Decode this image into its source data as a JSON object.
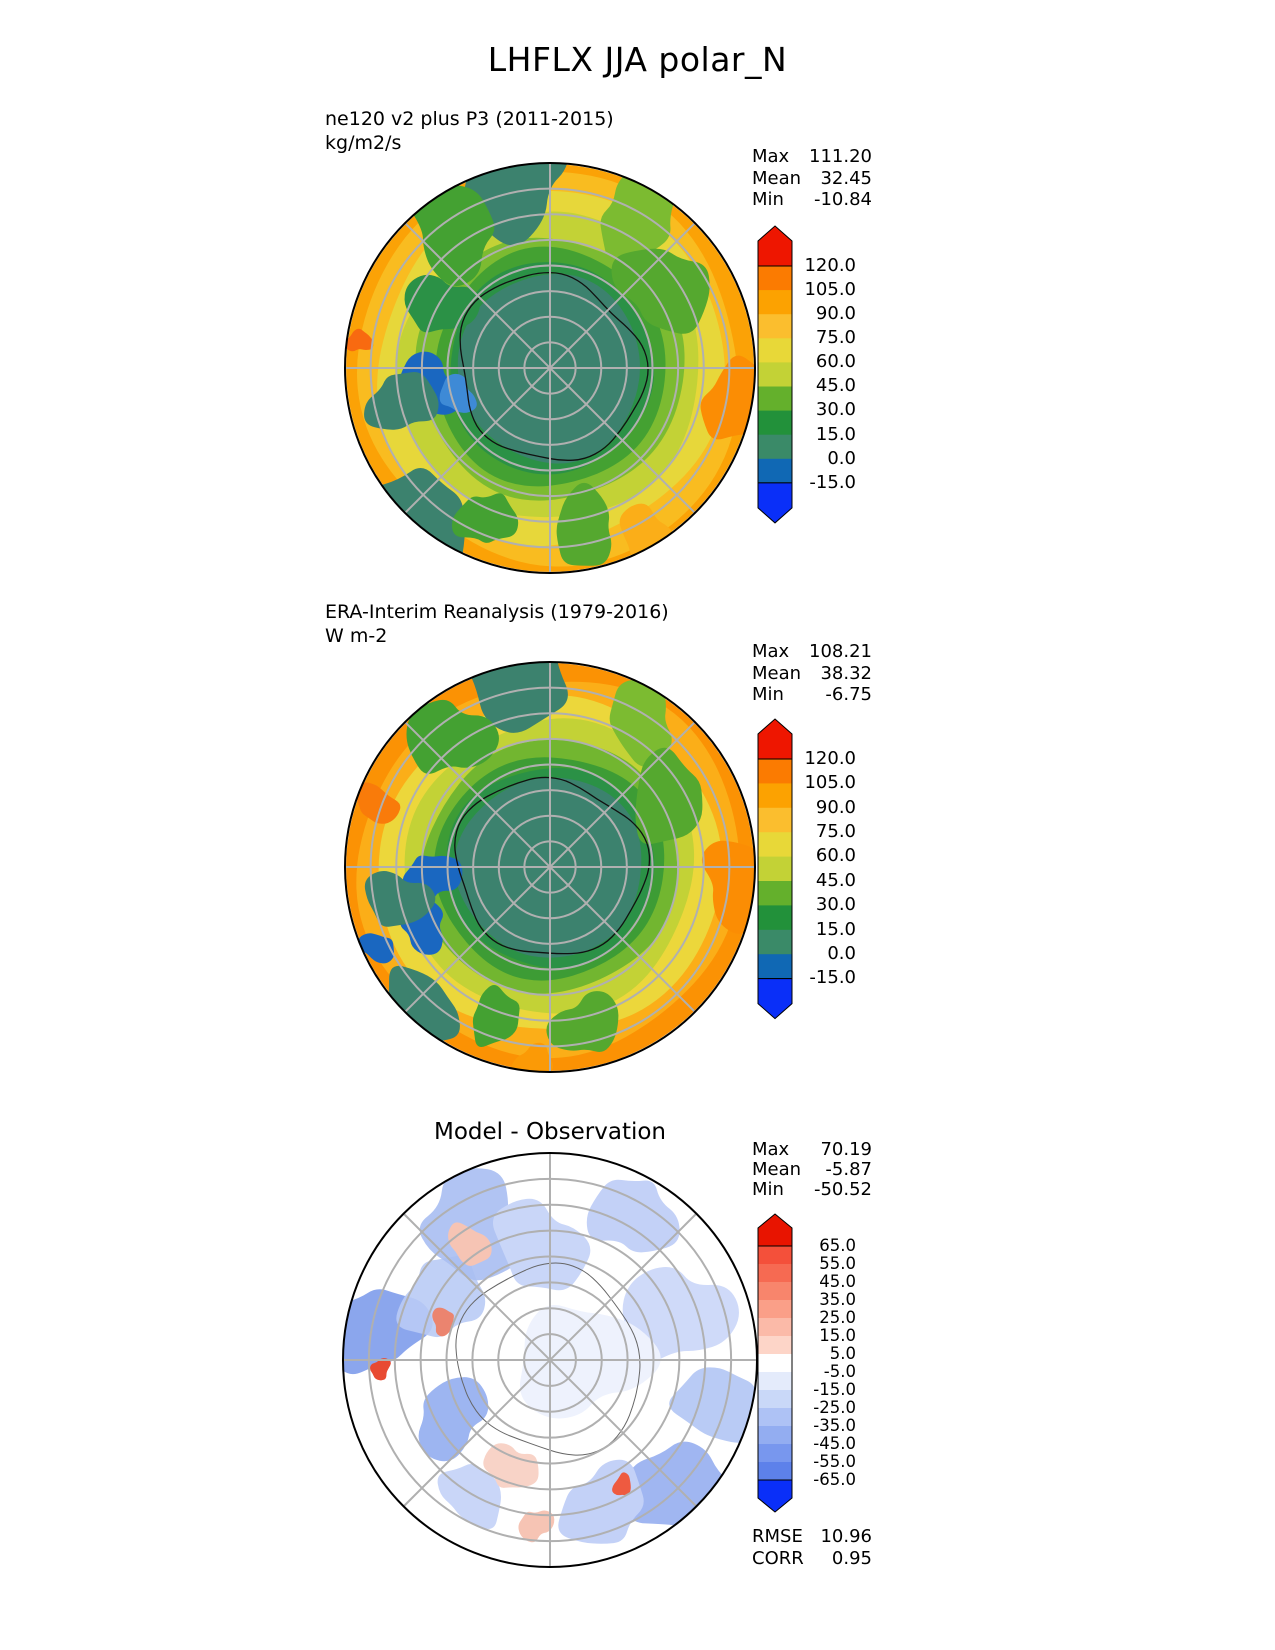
{
  "title": "LHFLX JJA polar_N",
  "background": "#ffffff",
  "panels": [
    {
      "id": "model",
      "label_line1": "ne120 v2 plus P3 (2011-2015)",
      "label_line2": "kg/m2/s",
      "stats": [
        {
          "label": "Max",
          "value": "111.20"
        },
        {
          "label": "Mean",
          "value": "32.45"
        },
        {
          "label": "Min",
          "value": "-10.84"
        }
      ],
      "colorbar": {
        "labels": [
          "120.0",
          "105.0",
          "90.0",
          "75.0",
          "60.0",
          "45.0",
          "30.0",
          "15.0",
          "0.0",
          "-15.0"
        ],
        "bin_colors": [
          "#fb7b01",
          "#fca201",
          "#fbbe2e",
          "#e8d838",
          "#c3d236",
          "#64b02c",
          "#22913a",
          "#3a8a68",
          "#1068b4"
        ],
        "over": "#ee1600",
        "under": "#0a2ff8"
      },
      "map_visual": {
        "seed": 11,
        "bands": [
          {
            "f": 1.0,
            "c": "#fba206"
          },
          {
            "f": 0.95,
            "c": "#f9bc20"
          },
          {
            "f": 0.86,
            "c": "#e7d73a"
          },
          {
            "f": 0.745,
            "c": "#c3d236"
          },
          {
            "f": 0.65,
            "c": "#7cbb31"
          },
          {
            "f": 0.575,
            "c": "#44a132"
          },
          {
            "f": 0.51,
            "c": "#2b9146"
          },
          {
            "f": 0.455,
            "c": "#3c826e"
          }
        ],
        "patches": [
          {
            "a": 100,
            "rf": 0.99,
            "sf": 0.3,
            "c": "#3c826e"
          },
          {
            "a": 125,
            "rf": 0.82,
            "sf": 0.22,
            "c": "#44a132"
          },
          {
            "a": 60,
            "rf": 0.85,
            "sf": 0.2,
            "c": "#7cbb31"
          },
          {
            "a": 35,
            "rf": 0.68,
            "sf": 0.22,
            "c": "#55a82f"
          },
          {
            "a": 150,
            "rf": 0.62,
            "sf": 0.16,
            "c": "#2b9146"
          },
          {
            "a": 188,
            "rf": 0.6,
            "sf": 0.15,
            "c": "#1a67c0"
          },
          {
            "a": 196,
            "rf": 0.47,
            "sf": 0.09,
            "c": "#3e8ad6"
          },
          {
            "a": 193,
            "rf": 0.74,
            "sf": 0.16,
            "c": "#3c826e"
          },
          {
            "a": 230,
            "rf": 0.97,
            "sf": 0.24,
            "c": "#3c826e"
          },
          {
            "a": 247,
            "rf": 0.8,
            "sf": 0.14,
            "c": "#44a132"
          },
          {
            "a": 282,
            "rf": 0.8,
            "sf": 0.17,
            "c": "#55a82f"
          },
          {
            "a": 172,
            "rf": 0.94,
            "sf": 0.06,
            "c": "#f86a10"
          },
          {
            "a": 350,
            "rf": 0.92,
            "sf": 0.18,
            "c": "#fb8d04"
          },
          {
            "a": 300,
            "rf": 0.95,
            "sf": 0.14,
            "c": "#fbae18"
          }
        ],
        "coast": {
          "rf": 0.455,
          "amp": 0.13,
          "color": "#111111",
          "width": 1.3
        },
        "graticule": {
          "circles": 7,
          "color": "#b0b0b0",
          "width": 2
        },
        "outline": "#000000"
      }
    },
    {
      "id": "observation",
      "label_line1": "ERA-Interim Reanalysis (1979-2016)",
      "label_line2": "W m-2",
      "stats": [
        {
          "label": "Max",
          "value": "108.21"
        },
        {
          "label": "Mean",
          "value": "38.32"
        },
        {
          "label": "Min",
          "value": "-6.75"
        }
      ],
      "colorbar": {
        "labels": [
          "120.0",
          "105.0",
          "90.0",
          "75.0",
          "60.0",
          "45.0",
          "30.0",
          "15.0",
          "0.0",
          "-15.0"
        ],
        "bin_colors": [
          "#fb7b01",
          "#fca201",
          "#fbbe2e",
          "#e8d838",
          "#c3d236",
          "#64b02c",
          "#22913a",
          "#3a8a68",
          "#1068b4"
        ],
        "over": "#ee1600",
        "under": "#0a2ff8"
      },
      "map_visual": {
        "seed": 29,
        "bands": [
          {
            "f": 1.0,
            "c": "#fb9204"
          },
          {
            "f": 0.93,
            "c": "#fbae18"
          },
          {
            "f": 0.83,
            "c": "#ecd73b"
          },
          {
            "f": 0.715,
            "c": "#c3d236"
          },
          {
            "f": 0.625,
            "c": "#72b630"
          },
          {
            "f": 0.555,
            "c": "#3d9c35"
          },
          {
            "f": 0.5,
            "c": "#2b9146"
          },
          {
            "f": 0.45,
            "c": "#3c826e"
          }
        ],
        "patches": [
          {
            "a": 100,
            "rf": 0.99,
            "sf": 0.28,
            "c": "#3c826e"
          },
          {
            "a": 128,
            "rf": 0.8,
            "sf": 0.2,
            "c": "#44a132"
          },
          {
            "a": 58,
            "rf": 0.84,
            "sf": 0.18,
            "c": "#7cbb31"
          },
          {
            "a": 30,
            "rf": 0.66,
            "sf": 0.2,
            "c": "#55a82f"
          },
          {
            "a": 185,
            "rf": 0.58,
            "sf": 0.13,
            "c": "#1a67c0"
          },
          {
            "a": 205,
            "rf": 0.68,
            "sf": 0.12,
            "c": "#1a67c0"
          },
          {
            "a": 192,
            "rf": 0.76,
            "sf": 0.15,
            "c": "#3c826e"
          },
          {
            "a": 228,
            "rf": 0.96,
            "sf": 0.2,
            "c": "#3c826e"
          },
          {
            "a": 250,
            "rf": 0.78,
            "sf": 0.13,
            "c": "#44a132"
          },
          {
            "a": 283,
            "rf": 0.79,
            "sf": 0.16,
            "c": "#55a82f"
          },
          {
            "a": 160,
            "rf": 0.9,
            "sf": 0.1,
            "c": "#f97b0a"
          },
          {
            "a": 355,
            "rf": 0.93,
            "sf": 0.2,
            "c": "#fb8d04"
          },
          {
            "a": 265,
            "rf": 0.97,
            "sf": 0.1,
            "c": "#fb9a06"
          },
          {
            "a": 205,
            "rf": 0.93,
            "sf": 0.08,
            "c": "#1a67c0"
          }
        ],
        "coast": {
          "rf": 0.45,
          "amp": 0.13,
          "color": "#111111",
          "width": 1.3
        },
        "graticule": {
          "circles": 7,
          "color": "#b0b0b0",
          "width": 2
        },
        "outline": "#000000"
      }
    },
    {
      "id": "difference",
      "title": "Model - Observation",
      "stats": [
        {
          "label": "Max",
          "value": "70.19"
        },
        {
          "label": "Mean",
          "value": "-5.87"
        },
        {
          "label": "Min",
          "value": "-50.52"
        }
      ],
      "colorbar": {
        "labels": [
          "65.0",
          "55.0",
          "45.0",
          "35.0",
          "25.0",
          "15.0",
          "5.0",
          "-5.0",
          "-15.0",
          "-25.0",
          "-35.0",
          "-45.0",
          "-55.0",
          "-65.0"
        ],
        "bin_colors": [
          "#f4503a",
          "#f66a52",
          "#f8856c",
          "#fa9f88",
          "#fbbaa8",
          "#fdd5c8",
          "#ffffff",
          "#e4ebfb",
          "#c9d8f8",
          "#aec2f5",
          "#93adf1",
          "#7897ee",
          "#5d81ea"
        ],
        "over": "#e81400",
        "under": "#0a2ff8"
      },
      "map_visual": {
        "seed": 53,
        "bands": [
          {
            "f": 1.0,
            "c": "#ffffff"
          }
        ],
        "patches": [
          {
            "a": 170,
            "rf": 0.85,
            "sf": 0.22,
            "c": "#6e90e8",
            "o": 0.8
          },
          {
            "a": 150,
            "rf": 0.6,
            "sf": 0.2,
            "c": "#b9cbf5",
            "o": 0.9
          },
          {
            "a": 120,
            "rf": 0.75,
            "sf": 0.25,
            "c": "#a9bef2",
            "o": 0.9
          },
          {
            "a": 95,
            "rf": 0.55,
            "sf": 0.22,
            "c": "#c9d6f8"
          },
          {
            "a": 60,
            "rf": 0.8,
            "sf": 0.2,
            "c": "#c3d1f7"
          },
          {
            "a": 20,
            "rf": 0.65,
            "sf": 0.25,
            "c": "#cfdaf9"
          },
          {
            "a": -15,
            "rf": 0.85,
            "sf": 0.2,
            "c": "#b9cbf5"
          },
          {
            "a": -45,
            "rf": 0.9,
            "sf": 0.25,
            "c": "#8fa9ef",
            "o": 0.85
          },
          {
            "a": -70,
            "rf": 0.75,
            "sf": 0.2,
            "c": "#c3d1f7"
          },
          {
            "a": 210,
            "rf": 0.55,
            "sf": 0.18,
            "c": "#9db5f1"
          },
          {
            "a": 240,
            "rf": 0.75,
            "sf": 0.15,
            "c": "#c9d6f8"
          },
          {
            "a": 0,
            "rf": 0.15,
            "sf": 0.3,
            "c": "#eef2fd"
          },
          {
            "a": 183,
            "rf": 0.82,
            "sf": 0.05,
            "c": "#e84a32"
          },
          {
            "a": 160,
            "rf": 0.55,
            "sf": 0.06,
            "c": "#f07b60",
            "o": 0.9
          },
          {
            "a": 125,
            "rf": 0.68,
            "sf": 0.1,
            "c": "#f6c4b4"
          },
          {
            "a": 250,
            "rf": 0.55,
            "sf": 0.12,
            "c": "#f8d3c7"
          },
          {
            "a": 265,
            "rf": 0.8,
            "sf": 0.08,
            "c": "#f6c4b4"
          },
          {
            "a": -60,
            "rf": 0.7,
            "sf": 0.05,
            "c": "#ee5a40"
          }
        ],
        "coast": {
          "rf": 0.45,
          "amp": 0.13,
          "color": "#666666",
          "width": 1.0
        },
        "graticule": {
          "circles": 7,
          "color": "#b0b0b0",
          "width": 2
        },
        "outline": "#000000"
      }
    }
  ],
  "footer": [
    {
      "label": "RMSE",
      "value": "10.96"
    },
    {
      "label": "CORR",
      "value": "0.95"
    }
  ],
  "chart_data": [
    {
      "type": "heatmap",
      "subtype": "filled-contour polar map",
      "title": "ne120 v2 plus P3 (2011-2015)",
      "variable": "LHFLX",
      "season": "JJA",
      "projection": "polar_N (north polar stereographic)",
      "units": "kg/m2/s",
      "levels": [
        -15.0,
        0.0,
        15.0,
        30.0,
        45.0,
        60.0,
        75.0,
        90.0,
        105.0,
        120.0
      ],
      "colorbar_extend": "both",
      "stats": {
        "max": 111.2,
        "mean": 32.45,
        "min": -10.84
      },
      "pattern": "0-15 (teal) over central Arctic Ocean; 15-60 (greens) over high-latitude land; 60-120 (yellow to orange) toward mid-latitude edges; small negative (blue) patches near Hudson Bay"
    },
    {
      "type": "heatmap",
      "subtype": "filled-contour polar map",
      "title": "ERA-Interim Reanalysis (1979-2016)",
      "variable": "LHFLX",
      "season": "JJA",
      "projection": "polar_N (north polar stereographic)",
      "units": "W m-2",
      "levels": [
        -15.0,
        0.0,
        15.0,
        30.0,
        45.0,
        60.0,
        75.0,
        90.0,
        105.0,
        120.0
      ],
      "colorbar_extend": "both",
      "stats": {
        "max": 108.21,
        "mean": 38.32,
        "min": -6.75
      },
      "pattern": "similar to model panel but higher mean; more orange (75-120) around map edges; teal Arctic Ocean core"
    },
    {
      "type": "heatmap",
      "subtype": "filled-contour polar difference map",
      "title": "Model - Observation",
      "variable": "LHFLX bias",
      "season": "JJA",
      "projection": "polar_N (north polar stereographic)",
      "levels": [
        -65.0,
        -55.0,
        -45.0,
        -35.0,
        -25.0,
        -15.0,
        -5.0,
        5.0,
        15.0,
        25.0,
        35.0,
        45.0,
        55.0,
        65.0
      ],
      "colorbar_extend": "both",
      "stats": {
        "max": 70.19,
        "mean": -5.87,
        "min": -50.52,
        "rmse": 10.96,
        "corr": 0.95
      },
      "pattern": "mostly near-zero (white) with widespread weak negative bias (light blues), stronger blue patches at left and lower-right edges, isolated red spots near left edge and Scandinavia"
    }
  ]
}
